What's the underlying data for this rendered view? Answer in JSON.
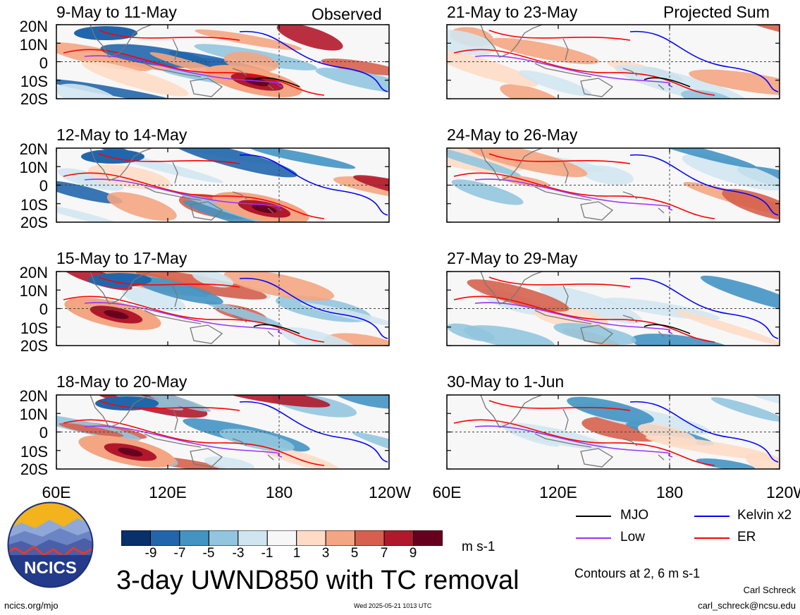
{
  "header": {
    "left_label": "Observed",
    "right_label": "Projected Sum"
  },
  "panels": [
    {
      "title": "9-May to 11-May"
    },
    {
      "title": "12-May to 14-May"
    },
    {
      "title": "15-May to 17-May"
    },
    {
      "title": "18-May to 20-May"
    },
    {
      "title": "21-May to 23-May"
    },
    {
      "title": "24-May to 26-May"
    },
    {
      "title": "27-May to 29-May"
    },
    {
      "title": "30-May to 1-Jun"
    }
  ],
  "lat_labels": [
    "20N",
    "10N",
    "0",
    "10S",
    "20S"
  ],
  "lon_labels": [
    "60E",
    "120E",
    "180",
    "120W"
  ],
  "colorbar": {
    "ticks": [
      "-9",
      "-7",
      "-5",
      "-3",
      "-1",
      "1",
      "3",
      "5",
      "7",
      "9"
    ],
    "colors": [
      "#08306b",
      "#2166ac",
      "#4393c3",
      "#92c5de",
      "#d1e5f0",
      "#f7f7f7",
      "#fddbc7",
      "#f4a582",
      "#d6604d",
      "#b2182b",
      "#67001f"
    ],
    "units": "m s-1"
  },
  "legend": {
    "items": [
      {
        "label": "MJO",
        "color": "#000000"
      },
      {
        "label": "Kelvin x2",
        "color": "#0000ff"
      },
      {
        "label": "Low",
        "color": "#9933ff"
      },
      {
        "label": "ER",
        "color": "#ff0000"
      }
    ],
    "contours_note": "Contours at 2, 6 m s-1"
  },
  "footer": {
    "title": "3-day UWND850 with TC removal",
    "site": "ncics.org/mjo",
    "timestamp": "Wed 2025-05-21 1013 UTC",
    "author": "Carl Schreck",
    "email": "carl_schreck@ncsu.edu",
    "logo_text": "NCICS"
  },
  "chart_data": {
    "type": "heatmap",
    "variable": "3-day UWND850 with TC removal",
    "units": "m s-1",
    "lat_ticks": [
      "20N",
      "10N",
      "0",
      "10S",
      "20S"
    ],
    "lon_ticks": [
      "60E",
      "120E",
      "180",
      "120W"
    ],
    "lon_range": [
      60,
      240
    ],
    "lat_range": [
      -20,
      20
    ],
    "contour_levels": [
      2,
      6
    ],
    "shading_levels": [
      -9,
      -7,
      -5,
      -3,
      -1,
      1,
      3,
      5,
      7,
      9
    ],
    "reference_lines": [
      "0",
      "180"
    ],
    "columns": [
      {
        "label": "Observed",
        "periods": [
          "9-May to 11-May",
          "12-May to 14-May",
          "15-May to 17-May",
          "18-May to 20-May"
        ]
      },
      {
        "label": "Projected Sum",
        "periods": [
          "21-May to 23-May",
          "24-May to 26-May",
          "27-May to 29-May",
          "30-May to 1-Jun"
        ]
      }
    ],
    "legend": [
      "MJO",
      "Kelvin x2",
      "Low",
      "ER"
    ]
  }
}
